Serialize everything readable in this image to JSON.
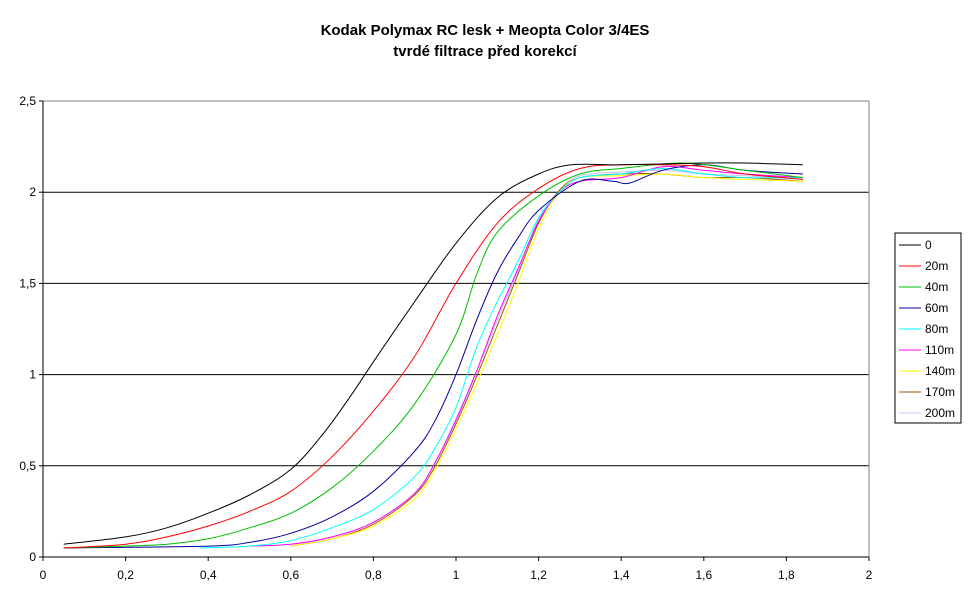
{
  "chart_data": {
    "type": "line",
    "title": "Kodak Polymax RC lesk + Meopta Color 3/4ES",
    "subtitle": "tvrdé filtrace před korekcí",
    "xlabel": "",
    "ylabel": "",
    "xlim": [
      0,
      2
    ],
    "ylim": [
      0,
      2.5
    ],
    "x_ticks": [
      "0",
      "0,2",
      "0,4",
      "0,6",
      "0,8",
      "1",
      "1,2",
      "1,4",
      "1,6",
      "1,8",
      "2"
    ],
    "y_ticks": [
      "0",
      "0,5",
      "1",
      "1,5",
      "2",
      "2,5"
    ],
    "grid": "horizontal",
    "legend_position": "right",
    "series": [
      {
        "name": "0",
        "color": "#000000",
        "points": [
          [
            0.05,
            0.07
          ],
          [
            0.2,
            0.11
          ],
          [
            0.3,
            0.16
          ],
          [
            0.4,
            0.24
          ],
          [
            0.5,
            0.34
          ],
          [
            0.6,
            0.48
          ],
          [
            0.68,
            0.68
          ],
          [
            0.75,
            0.9
          ],
          [
            0.8,
            1.07
          ],
          [
            0.9,
            1.4
          ],
          [
            1.0,
            1.72
          ],
          [
            1.1,
            1.97
          ],
          [
            1.2,
            2.1
          ],
          [
            1.28,
            2.15
          ],
          [
            1.4,
            2.15
          ],
          [
            1.6,
            2.16
          ],
          [
            1.7,
            2.16
          ],
          [
            1.84,
            2.15
          ]
        ]
      },
      {
        "name": "20m",
        "color": "#ff0000",
        "points": [
          [
            0.05,
            0.05
          ],
          [
            0.2,
            0.07
          ],
          [
            0.3,
            0.11
          ],
          [
            0.4,
            0.17
          ],
          [
            0.5,
            0.25
          ],
          [
            0.6,
            0.36
          ],
          [
            0.7,
            0.55
          ],
          [
            0.8,
            0.8
          ],
          [
            0.9,
            1.1
          ],
          [
            1.0,
            1.5
          ],
          [
            1.1,
            1.83
          ],
          [
            1.2,
            2.02
          ],
          [
            1.3,
            2.13
          ],
          [
            1.4,
            2.15
          ],
          [
            1.5,
            2.15
          ],
          [
            1.6,
            2.14
          ],
          [
            1.7,
            2.1
          ],
          [
            1.84,
            2.07
          ]
        ]
      },
      {
        "name": "40m",
        "color": "#00c000",
        "points": [
          [
            0.05,
            0.05
          ],
          [
            0.2,
            0.06
          ],
          [
            0.3,
            0.07
          ],
          [
            0.4,
            0.1
          ],
          [
            0.5,
            0.16
          ],
          [
            0.6,
            0.24
          ],
          [
            0.7,
            0.38
          ],
          [
            0.8,
            0.58
          ],
          [
            0.9,
            0.84
          ],
          [
            1.0,
            1.22
          ],
          [
            1.05,
            1.55
          ],
          [
            1.1,
            1.78
          ],
          [
            1.2,
            1.98
          ],
          [
            1.3,
            2.1
          ],
          [
            1.4,
            2.13
          ],
          [
            1.55,
            2.16
          ],
          [
            1.7,
            2.12
          ],
          [
            1.84,
            2.08
          ]
        ]
      },
      {
        "name": "60m",
        "color": "#0000a0",
        "points": [
          [
            0.05,
            0.05
          ],
          [
            0.4,
            0.06
          ],
          [
            0.5,
            0.08
          ],
          [
            0.6,
            0.13
          ],
          [
            0.7,
            0.22
          ],
          [
            0.8,
            0.36
          ],
          [
            0.9,
            0.58
          ],
          [
            0.95,
            0.75
          ],
          [
            1.0,
            1.0
          ],
          [
            1.05,
            1.3
          ],
          [
            1.1,
            1.56
          ],
          [
            1.15,
            1.75
          ],
          [
            1.2,
            1.9
          ],
          [
            1.3,
            2.06
          ],
          [
            1.38,
            2.06
          ],
          [
            1.42,
            2.05
          ],
          [
            1.5,
            2.12
          ],
          [
            1.6,
            2.15
          ],
          [
            1.7,
            2.12
          ],
          [
            1.84,
            2.1
          ]
        ]
      },
      {
        "name": "80m",
        "color": "#00ffff",
        "points": [
          [
            0.38,
            0.05
          ],
          [
            0.5,
            0.06
          ],
          [
            0.6,
            0.09
          ],
          [
            0.7,
            0.16
          ],
          [
            0.8,
            0.26
          ],
          [
            0.9,
            0.44
          ],
          [
            0.95,
            0.6
          ],
          [
            1.0,
            0.82
          ],
          [
            1.05,
            1.15
          ],
          [
            1.1,
            1.4
          ],
          [
            1.15,
            1.62
          ],
          [
            1.2,
            1.86
          ],
          [
            1.25,
            2.0
          ],
          [
            1.3,
            2.08
          ],
          [
            1.4,
            2.1
          ],
          [
            1.5,
            2.13
          ],
          [
            1.6,
            2.1
          ],
          [
            1.7,
            2.08
          ],
          [
            1.84,
            2.08
          ]
        ]
      },
      {
        "name": "110m",
        "color": "#ff00ff",
        "points": [
          [
            0.5,
            0.06
          ],
          [
            0.6,
            0.07
          ],
          [
            0.7,
            0.11
          ],
          [
            0.8,
            0.19
          ],
          [
            0.9,
            0.35
          ],
          [
            0.95,
            0.52
          ],
          [
            1.0,
            0.75
          ],
          [
            1.05,
            1.02
          ],
          [
            1.1,
            1.32
          ],
          [
            1.15,
            1.58
          ],
          [
            1.2,
            1.84
          ],
          [
            1.25,
            2.0
          ],
          [
            1.3,
            2.06
          ],
          [
            1.4,
            2.08
          ],
          [
            1.5,
            2.14
          ],
          [
            1.6,
            2.12
          ],
          [
            1.7,
            2.1
          ],
          [
            1.84,
            2.08
          ]
        ]
      },
      {
        "name": "140m",
        "color": "#ffff00",
        "points": [
          [
            0.6,
            0.06
          ],
          [
            0.7,
            0.1
          ],
          [
            0.8,
            0.17
          ],
          [
            0.9,
            0.32
          ],
          [
            0.95,
            0.48
          ],
          [
            1.0,
            0.7
          ],
          [
            1.05,
            0.95
          ],
          [
            1.1,
            1.22
          ],
          [
            1.15,
            1.5
          ],
          [
            1.2,
            1.8
          ],
          [
            1.25,
            2.0
          ],
          [
            1.3,
            2.08
          ],
          [
            1.4,
            2.09
          ],
          [
            1.5,
            2.1
          ],
          [
            1.6,
            2.08
          ],
          [
            1.7,
            2.07
          ],
          [
            1.84,
            2.06
          ]
        ]
      },
      {
        "name": "170m",
        "color": "#a05000",
        "points": [
          [
            0.6,
            0.06
          ],
          [
            0.7,
            0.1
          ],
          [
            0.8,
            0.18
          ],
          [
            0.9,
            0.34
          ],
          [
            0.95,
            0.5
          ],
          [
            1.0,
            0.73
          ],
          [
            1.05,
            0.99
          ],
          [
            1.1,
            1.27
          ],
          [
            1.15,
            1.55
          ],
          [
            1.2,
            1.83
          ],
          [
            1.25,
            2.01
          ],
          [
            1.3,
            2.08
          ],
          [
            1.4,
            2.1
          ],
          [
            1.5,
            2.1
          ],
          [
            1.6,
            2.08
          ],
          [
            1.7,
            2.08
          ],
          [
            1.84,
            2.06
          ]
        ]
      },
      {
        "name": "200m",
        "color": "#c0c0ff",
        "points": [
          [
            0.6,
            0.06
          ],
          [
            0.7,
            0.11
          ],
          [
            0.8,
            0.19
          ],
          [
            0.9,
            0.35
          ],
          [
            0.95,
            0.52
          ],
          [
            1.0,
            0.76
          ],
          [
            1.05,
            1.02
          ],
          [
            1.1,
            1.3
          ],
          [
            1.15,
            1.57
          ],
          [
            1.2,
            1.85
          ],
          [
            1.25,
            2.01
          ],
          [
            1.3,
            2.09
          ],
          [
            1.4,
            2.11
          ],
          [
            1.5,
            2.12
          ],
          [
            1.6,
            2.1
          ],
          [
            1.7,
            2.09
          ],
          [
            1.84,
            2.07
          ]
        ]
      }
    ]
  }
}
